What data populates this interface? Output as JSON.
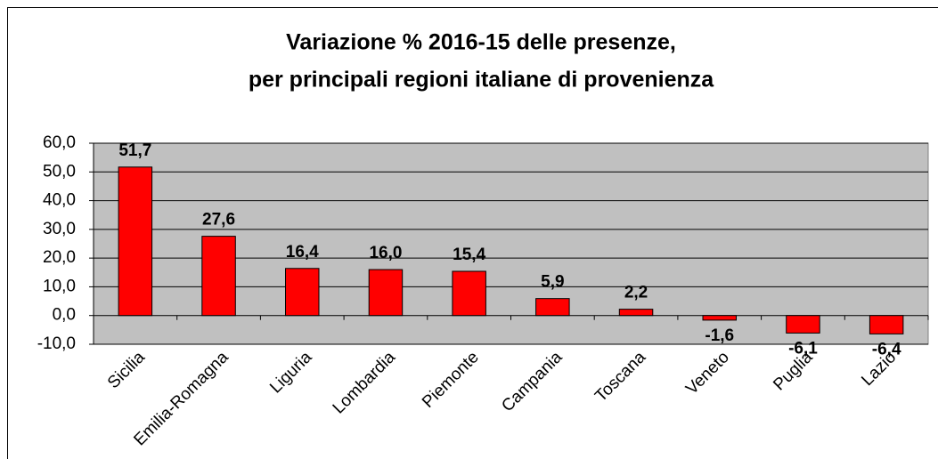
{
  "chart_data": {
    "type": "bar",
    "title": [
      "Variazione % 2016-15 delle presenze,",
      "per principali regioni italiane di provenienza"
    ],
    "categories": [
      "Sicilia",
      "Emilia-Romagna",
      "Liguria",
      "Lombardia",
      "Piemonte",
      "Campania",
      "Toscana",
      "Veneto",
      "Puglia",
      "Lazio"
    ],
    "values": [
      51.7,
      27.6,
      16.4,
      16.0,
      15.4,
      5.9,
      2.2,
      -1.6,
      -6.1,
      -6.4
    ],
    "value_labels": [
      "51,7",
      "27,6",
      "16,4",
      "16,0",
      "15,4",
      "5,9",
      "2,2",
      "-1,6",
      "-6,1",
      "-6,4"
    ],
    "color": "#ff0000",
    "ylim": [
      -10,
      60
    ],
    "yticks": [
      {
        "value": -10,
        "label": "-10,0"
      },
      {
        "value": 0,
        "label": "0,0"
      },
      {
        "value": 10,
        "label": "10,0"
      },
      {
        "value": 20,
        "label": "20,0"
      },
      {
        "value": 30,
        "label": "30,0"
      },
      {
        "value": 40,
        "label": "40,0"
      },
      {
        "value": 50,
        "label": "50,0"
      },
      {
        "value": 60,
        "label": "60,0"
      }
    ],
    "grid": true
  }
}
